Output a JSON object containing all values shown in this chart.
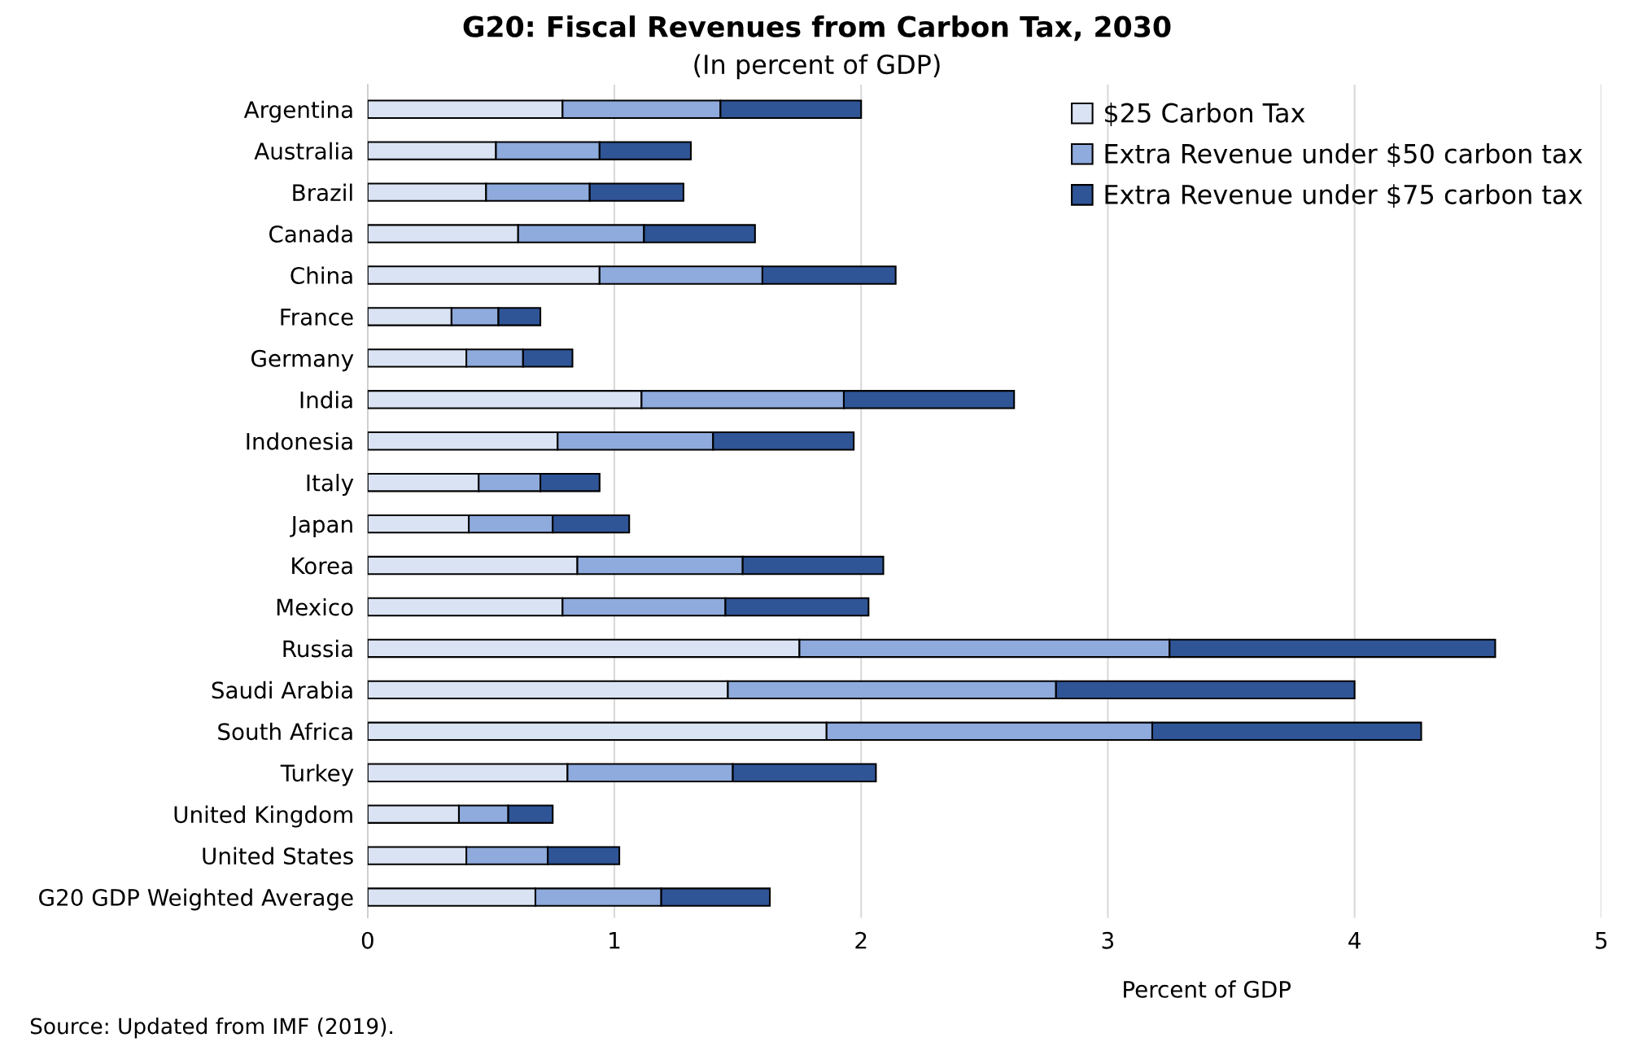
{
  "chart_data": {
    "type": "bar",
    "orientation": "horizontal",
    "stacked": true,
    "title": "G20: Fiscal Revenues from Carbon Tax, 2030",
    "subtitle": "(In percent of GDP)",
    "xlabel": "Percent of GDP",
    "annotations": [
      "Source: Updated from IMF (2019)."
    ],
    "categories": [
      "Argentina",
      "Australia",
      "Brazil",
      "Canada",
      "China",
      "France",
      "Germany",
      "India",
      "Indonesia",
      "Italy",
      "Japan",
      "Korea",
      "Mexico",
      "Russia",
      "Saudi Arabia",
      "South Africa",
      "Turkey",
      "United Kingdom",
      "United States",
      "G20 GDP Weighted Average"
    ],
    "series": [
      {
        "name": "$25 Carbon Tax",
        "color": "#dae3f3",
        "values": [
          0.79,
          0.52,
          0.48,
          0.61,
          0.94,
          0.34,
          0.4,
          1.11,
          0.77,
          0.45,
          0.41,
          0.85,
          0.79,
          1.75,
          1.46,
          1.86,
          0.81,
          0.37,
          0.4,
          0.68
        ]
      },
      {
        "name": "Extra Revenue under $50 carbon tax",
        "color": "#8faadc",
        "values": [
          0.64,
          0.42,
          0.42,
          0.51,
          0.66,
          0.19,
          0.23,
          0.82,
          0.63,
          0.25,
          0.34,
          0.67,
          0.66,
          1.5,
          1.33,
          1.32,
          0.67,
          0.2,
          0.33,
          0.51
        ]
      },
      {
        "name": "Extra Revenue under $75 carbon tax",
        "color": "#2f5597",
        "values": [
          0.57,
          0.37,
          0.38,
          0.45,
          0.54,
          0.17,
          0.2,
          0.69,
          0.57,
          0.24,
          0.31,
          0.57,
          0.58,
          1.32,
          1.21,
          1.09,
          0.58,
          0.18,
          0.29,
          0.44
        ]
      }
    ],
    "xlim": [
      0,
      5
    ],
    "xticks": [
      0,
      1,
      2,
      3,
      4,
      5
    ],
    "grid": "x",
    "legend": "top right"
  }
}
